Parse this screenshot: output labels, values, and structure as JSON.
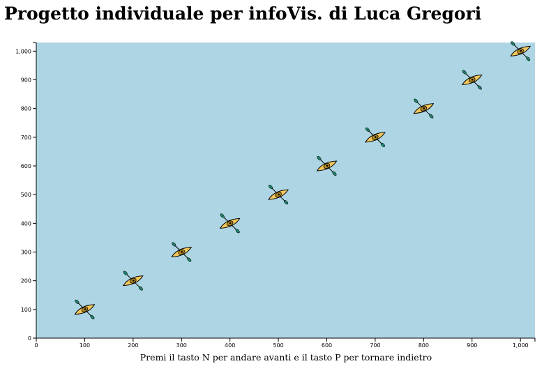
{
  "header": {
    "title": "Progetto individuale per infoVis. di Luca Gregori"
  },
  "footer": {
    "instructions": "Premi il tasto N per andare avanti e il tasto P per tornare indietro"
  },
  "colors": {
    "plot_background": "#add5e3",
    "kayak_hull": "#f3c75b",
    "kayak_cockpit": "#b38a1d",
    "paddle_blade": "#1e8a6e",
    "outline": "#000000"
  },
  "chart_data": {
    "type": "scatter",
    "marker": "kayak-icon",
    "x": [
      100,
      200,
      300,
      400,
      500,
      600,
      700,
      800,
      900,
      1000
    ],
    "y": [
      100,
      200,
      300,
      400,
      500,
      600,
      700,
      800,
      900,
      1000
    ],
    "xlim": [
      0,
      1030
    ],
    "ylim": [
      0,
      1030
    ],
    "x_ticks": [
      0,
      100,
      200,
      300,
      400,
      500,
      600,
      700,
      800,
      900,
      1000
    ],
    "y_ticks": [
      0,
      100,
      200,
      300,
      400,
      500,
      600,
      700,
      800,
      900,
      1000
    ],
    "x_tick_labels": [
      "0",
      "100",
      "200",
      "300",
      "400",
      "500",
      "600",
      "700",
      "800",
      "900",
      "1,000"
    ],
    "y_tick_labels": [
      "0",
      "100",
      "200",
      "300",
      "400",
      "500",
      "600",
      "700",
      "800",
      "900",
      "1,000"
    ],
    "grid": false
  }
}
